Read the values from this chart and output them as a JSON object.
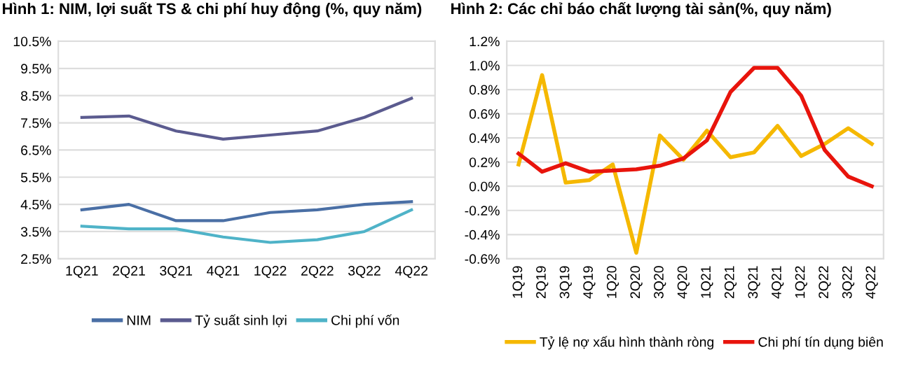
{
  "chart_data": [
    {
      "type": "line",
      "title": "Hình 1: NIM, lợi suất TS & chi phí huy động (%, quy năm)",
      "categories": [
        "1Q21",
        "2Q21",
        "3Q21",
        "4Q21",
        "1Q22",
        "2Q22",
        "3Q22",
        "4Q22"
      ],
      "series": [
        {
          "name": "NIM",
          "color": "#4a6fa5",
          "values": [
            4.3,
            4.5,
            3.9,
            3.9,
            4.2,
            4.3,
            4.5,
            4.6
          ]
        },
        {
          "name": "Tỷ suất sinh lợi",
          "color": "#5b5b8f",
          "values": [
            7.7,
            7.75,
            7.2,
            6.9,
            7.05,
            7.2,
            7.7,
            8.4
          ]
        },
        {
          "name": "Chi phí vốn",
          "color": "#4fb3c8",
          "values": [
            3.7,
            3.6,
            3.6,
            3.3,
            3.1,
            3.2,
            3.5,
            4.3
          ]
        }
      ],
      "ylim": [
        2.5,
        10.5
      ],
      "yticks": [
        {
          "value": 2.5,
          "label": "2.5%"
        },
        {
          "value": 3.5,
          "label": "3.5%"
        },
        {
          "value": 4.5,
          "label": "4.5%"
        },
        {
          "value": 5.5,
          "label": "5.5%"
        },
        {
          "value": 6.5,
          "label": "6.5%"
        },
        {
          "value": 7.5,
          "label": "7.5%"
        },
        {
          "value": 8.5,
          "label": "8.5%"
        },
        {
          "value": 9.5,
          "label": "9.5%"
        },
        {
          "value": 10.5,
          "label": "10.5%"
        }
      ],
      "grid": "y",
      "legend": "bottom"
    },
    {
      "type": "line",
      "title": "Hình 2: Các chỉ báo chất lượng tài sản(%, quy năm)",
      "categories": [
        "1Q19",
        "2Q19",
        "3Q19",
        "4Q19",
        "1Q20",
        "2Q20",
        "3Q20",
        "4Q20",
        "1Q21",
        "2Q21",
        "3Q21",
        "4Q21",
        "1Q22",
        "2Q22",
        "3Q22",
        "4Q22"
      ],
      "series": [
        {
          "name": "Tỷ lệ nợ xấu hình thành ròng",
          "color": "#f5b800",
          "values": [
            0.18,
            0.92,
            0.03,
            0.05,
            0.18,
            -0.55,
            0.42,
            0.22,
            0.46,
            0.24,
            0.28,
            0.5,
            0.25,
            0.35,
            0.48,
            0.35
          ]
        },
        {
          "name": "Chi phí tín dụng biên",
          "color": "#e8140c",
          "values": [
            0.27,
            0.12,
            0.19,
            0.12,
            0.13,
            0.14,
            0.17,
            0.23,
            0.38,
            0.78,
            0.98,
            0.98,
            0.75,
            0.3,
            0.08,
            0.0
          ]
        }
      ],
      "ylim": [
        -0.6,
        1.2
      ],
      "yticks": [
        {
          "value": -0.6,
          "label": "-0.6%"
        },
        {
          "value": -0.4,
          "label": "-0.4%"
        },
        {
          "value": -0.2,
          "label": "-0.2%"
        },
        {
          "value": 0.0,
          "label": "0.0%"
        },
        {
          "value": 0.2,
          "label": "0.2%"
        },
        {
          "value": 0.4,
          "label": "0.4%"
        },
        {
          "value": 0.6,
          "label": "0.6%"
        },
        {
          "value": 0.8,
          "label": "0.8%"
        },
        {
          "value": 1.0,
          "label": "1.0%"
        },
        {
          "value": 1.2,
          "label": "1.2%"
        }
      ],
      "grid": "y",
      "legend": "bottom"
    }
  ]
}
